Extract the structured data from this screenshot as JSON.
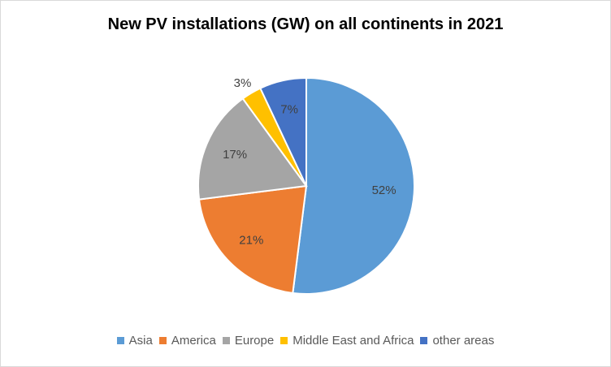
{
  "chart_data": {
    "type": "pie",
    "title": "New PV installations (GW) on all continents in 2021",
    "categories": [
      "Asia",
      "America",
      "Europe",
      "Middle East and Africa",
      "other areas"
    ],
    "values": [
      52,
      21,
      17,
      3,
      7
    ],
    "labels": [
      "52%",
      "21%",
      "17%",
      "3%",
      "7%"
    ],
    "colors": [
      "#5b9bd5",
      "#ed7d31",
      "#a5a5a5",
      "#ffc000",
      "#4472c4"
    ],
    "legend_position": "bottom"
  }
}
